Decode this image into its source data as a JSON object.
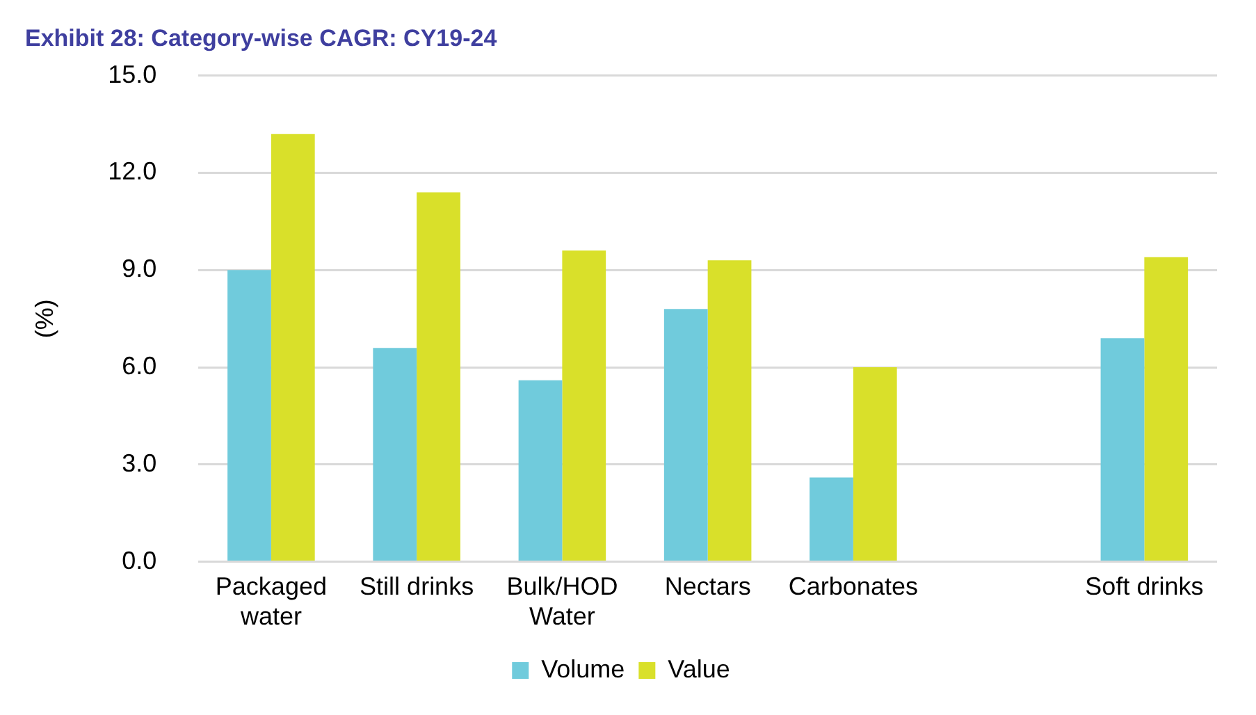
{
  "chart_data": {
    "type": "bar",
    "title": "Exhibit 28: Category-wise CAGR: CY19-24",
    "ylabel": "(%)",
    "categories": [
      "Packaged water",
      "Still drinks",
      "Bulk/HOD Water",
      "Nectars",
      "Carbonates",
      null,
      "Soft drinks"
    ],
    "series": [
      {
        "name": "Volume",
        "color": "#70cbdc",
        "values": [
          9.0,
          6.6,
          5.6,
          7.8,
          2.6,
          null,
          6.9
        ]
      },
      {
        "name": "Value",
        "color": "#d9e02a",
        "values": [
          13.2,
          11.4,
          9.6,
          9.3,
          6.0,
          null,
          9.4
        ]
      }
    ],
    "ylim": [
      0,
      15
    ],
    "yticks": [
      {
        "value": 0,
        "label": "0.0"
      },
      {
        "value": 3,
        "label": "3.0"
      },
      {
        "value": 6,
        "label": "6.0"
      },
      {
        "value": 9,
        "label": "9.0"
      },
      {
        "value": 12,
        "label": "12.0"
      },
      {
        "value": 15,
        "label": "15.0"
      }
    ],
    "grid": "y",
    "legend": "bottom"
  }
}
